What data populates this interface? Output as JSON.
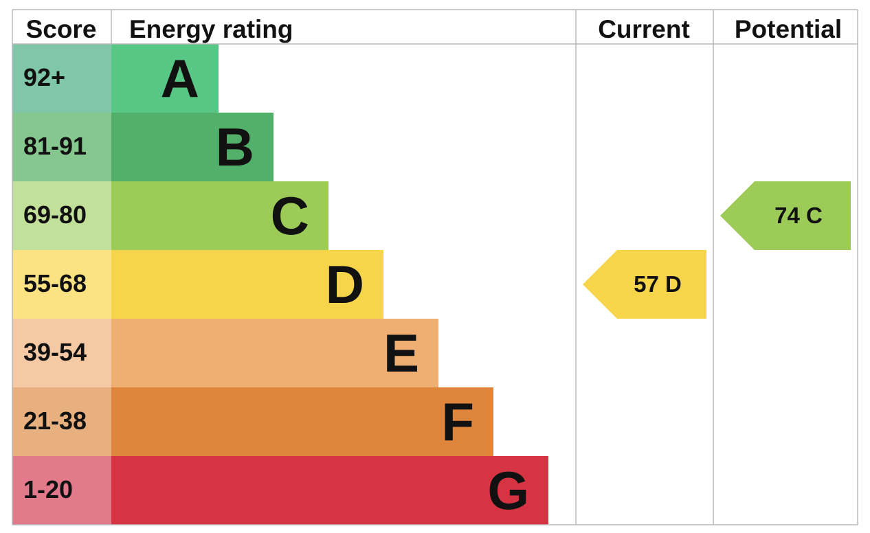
{
  "headers": {
    "score": "Score",
    "energy_rating": "Energy rating",
    "current": "Current",
    "potential": "Potential"
  },
  "chart_data": {
    "type": "bar",
    "bands": [
      {
        "score": "92+",
        "letter": "A",
        "bar_color": "#58c685",
        "score_color": "#80c6a9"
      },
      {
        "score": "81-91",
        "letter": "B",
        "bar_color": "#52b06a",
        "score_color": "#86c78f"
      },
      {
        "score": "69-80",
        "letter": "C",
        "bar_color": "#9ccb58",
        "score_color": "#c2e09a"
      },
      {
        "score": "55-68",
        "letter": "D",
        "bar_color": "#f6d54a",
        "score_color": "#fbe384"
      },
      {
        "score": "39-54",
        "letter": "E",
        "bar_color": "#efae72",
        "score_color": "#f4c9a4"
      },
      {
        "score": "21-38",
        "letter": "F",
        "bar_color": "#e0853c",
        "score_color": "#e8b07f"
      },
      {
        "score": "1-20",
        "letter": "G",
        "bar_color": "#d63443",
        "score_color": "#e37a8c"
      }
    ],
    "current": {
      "value": 57,
      "letter": "D",
      "label": "57  D",
      "color": "#f6d54a"
    },
    "potential": {
      "value": 74,
      "letter": "C",
      "label": "74  C",
      "color": "#9ccb58"
    }
  }
}
